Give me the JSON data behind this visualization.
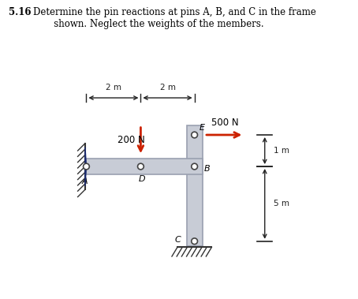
{
  "title_bold": "5.16",
  "title_text": "Determine the pin reactions at pins A, B, and C in the frame\n       shown. Neglect the weights of the members.",
  "bg_color": "#ffffff",
  "beam_color": "#c8ccd6",
  "beam_outline": "#9aa0b0",
  "arrow_color": "#cc2200",
  "dim_color": "#222222",
  "label_color": "#000000",
  "force_500N_label": "500 N",
  "force_200N_label": "200 N",
  "dim_2m_1": "2 m",
  "dim_2m_2": "2 m",
  "dim_1m": "1 m",
  "dim_5m": "5 m",
  "label_A": "A",
  "label_B": "B",
  "label_C": "C",
  "label_D": "D",
  "label_E": "E",
  "wall_tri_color": "#2a4aaa",
  "wall_tri_edge": "#1a2a70",
  "ground_hatch_color": "#333333",
  "pin_facecolor": "#888888",
  "pin_edgecolor": "#333333"
}
